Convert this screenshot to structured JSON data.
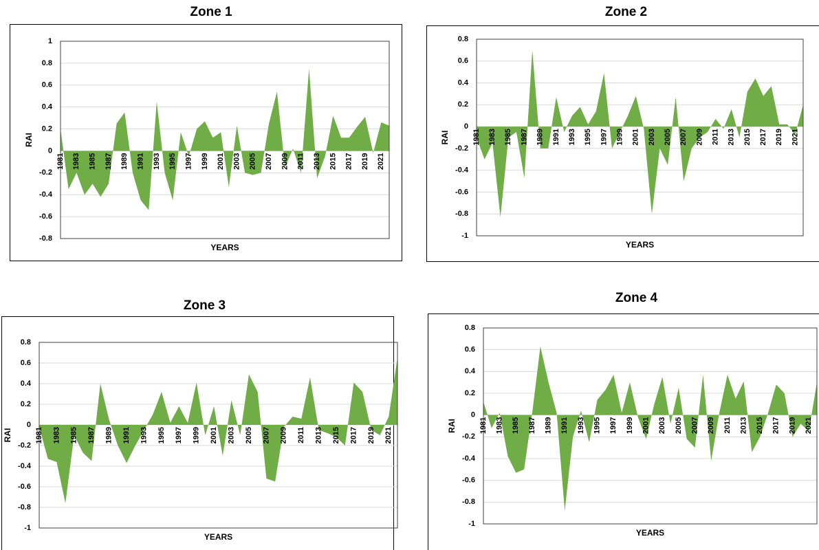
{
  "chart_data": [
    {
      "type": "area",
      "title": "Zone 1",
      "xlabel": "YEARS",
      "ylabel": "RAI",
      "color": "#70ad47",
      "grid": true,
      "categories": [
        "1981",
        null,
        "1983",
        null,
        "1985",
        null,
        "1987",
        null,
        "1989",
        null,
        "1991",
        null,
        "1993",
        null,
        "1995",
        null,
        "1997",
        null,
        "1999",
        null,
        "2001",
        null,
        "2003",
        null,
        "2005",
        null,
        "2007",
        null,
        "2009",
        null,
        "2011",
        null,
        "2013",
        null,
        "2015",
        null,
        "2017",
        null,
        "2019",
        null,
        "2021",
        null
      ],
      "values": [
        0.2,
        -0.35,
        -0.2,
        -0.4,
        -0.3,
        -0.42,
        -0.3,
        0.25,
        0.35,
        -0.2,
        -0.45,
        -0.54,
        0.45,
        -0.2,
        -0.45,
        0.17,
        -0.05,
        0.2,
        0.27,
        0.12,
        0.17,
        -0.33,
        0.23,
        -0.2,
        -0.22,
        -0.2,
        0.25,
        0.54,
        -0.15,
        0.02,
        -0.2,
        0.75,
        -0.25,
        -0.05,
        0.32,
        0.12,
        0.12,
        0.22,
        0.31,
        -0.02,
        0.26,
        0.23
      ],
      "ylim": [
        -0.8,
        1
      ],
      "yticks": [
        -0.8,
        -0.6,
        -0.4,
        -0.2,
        0,
        0.2,
        0.4,
        0.6,
        0.8,
        1
      ]
    },
    {
      "type": "area",
      "title": "Zone 2",
      "xlabel": "YEARS",
      "ylabel": "RAI",
      "color": "#70ad47",
      "grid": true,
      "categories": [
        "1981",
        null,
        "1983",
        null,
        "1985",
        null,
        "1987",
        null,
        "1989",
        null,
        "1991",
        null,
        "1993",
        null,
        "1995",
        null,
        "1997",
        null,
        "1999",
        null,
        "2001",
        null,
        "2003",
        null,
        "2005",
        null,
        "2007",
        null,
        "2009",
        null,
        "2011",
        null,
        "2013",
        null,
        "2015",
        null,
        "2017",
        null,
        "2019",
        null,
        "2021",
        null
      ],
      "values": [
        -0.1,
        -0.3,
        -0.15,
        -0.83,
        -0.1,
        -0.05,
        -0.47,
        0.7,
        -0.2,
        -0.2,
        0.27,
        -0.05,
        0.1,
        0.18,
        0.02,
        0.14,
        0.49,
        -0.2,
        -0.05,
        0.1,
        0.28,
        -0.02,
        -0.8,
        -0.2,
        -0.35,
        0.27,
        -0.5,
        -0.2,
        -0.1,
        -0.05,
        0.07,
        -0.02,
        0.16,
        -0.1,
        0.32,
        0.44,
        0.28,
        0.37,
        0.02,
        0.02,
        -0.07,
        0.2
      ],
      "ylim": [
        -1,
        0.8
      ],
      "yticks": [
        -1,
        -0.8,
        -0.6,
        -0.4,
        -0.2,
        0,
        0.2,
        0.4,
        0.6,
        0.8
      ]
    },
    {
      "type": "area",
      "title": "Zone 3",
      "xlabel": "YEARS",
      "ylabel": "RAI",
      "color": "#70ad47",
      "grid": true,
      "categories": [
        "1981",
        null,
        "1983",
        null,
        "1985",
        null,
        "1987",
        null,
        "1989",
        null,
        "1991",
        null,
        "1993",
        null,
        "1995",
        null,
        "1997",
        null,
        "1999",
        null,
        "2001",
        null,
        "2003",
        null,
        "2005",
        null,
        "2007",
        null,
        "2009",
        null,
        "2011",
        null,
        "2013",
        null,
        "2015",
        null,
        "2017",
        null,
        "2019",
        null,
        "2021",
        null
      ],
      "values": [
        -0.02,
        -0.33,
        -0.36,
        -0.76,
        -0.1,
        -0.27,
        -0.35,
        0.4,
        0.05,
        -0.2,
        -0.37,
        -0.2,
        -0.05,
        0.1,
        0.32,
        0.02,
        0.18,
        0.02,
        0.41,
        -0.1,
        0.18,
        -0.3,
        0.24,
        -0.1,
        0.49,
        0.32,
        -0.52,
        -0.55,
        -0.02,
        0.08,
        0.06,
        0.46,
        -0.05,
        -0.08,
        -0.12,
        -0.2,
        0.41,
        0.32,
        -0.05,
        -0.1,
        0.08,
        0.65
      ],
      "ylim": [
        -1,
        0.8
      ],
      "yticks": [
        -1,
        -0.8,
        -0.6,
        -0.4,
        -0.2,
        0,
        0.2,
        0.4,
        0.6,
        0.8
      ]
    },
    {
      "type": "area",
      "title": "Zone 4",
      "xlabel": "YEARS",
      "ylabel": "RAI",
      "color": "#70ad47",
      "grid": true,
      "categories": [
        "1981",
        null,
        "1983",
        null,
        "1985",
        null,
        "1987",
        null,
        "1989",
        null,
        "1991",
        null,
        "1993",
        null,
        "1995",
        null,
        "1997",
        null,
        "1999",
        null,
        "2001",
        null,
        "2003",
        null,
        "2005",
        null,
        "2007",
        null,
        "2009",
        null,
        "2011",
        null,
        "2013",
        null,
        "2015",
        null,
        "2017",
        null,
        "2019",
        null,
        "2021",
        null
      ],
      "values": [
        0.12,
        -0.12,
        0.02,
        -0.38,
        -0.53,
        -0.5,
        0.02,
        0.63,
        0.3,
        0.02,
        -0.88,
        -0.2,
        0.04,
        -0.25,
        0.14,
        0.23,
        0.37,
        0.02,
        0.3,
        -0.02,
        -0.22,
        0.1,
        0.35,
        -0.08,
        0.25,
        -0.22,
        -0.3,
        0.37,
        -0.42,
        0.02,
        0.37,
        0.15,
        0.31,
        -0.34,
        -0.2,
        0.02,
        0.28,
        0.2,
        -0.2,
        -0.08,
        -0.15,
        0.3
      ],
      "ylim": [
        -1,
        0.8
      ],
      "yticks": [
        -1,
        -0.8,
        -0.6,
        -0.4,
        -0.2,
        0,
        0.2,
        0.4,
        0.6,
        0.8
      ]
    }
  ]
}
